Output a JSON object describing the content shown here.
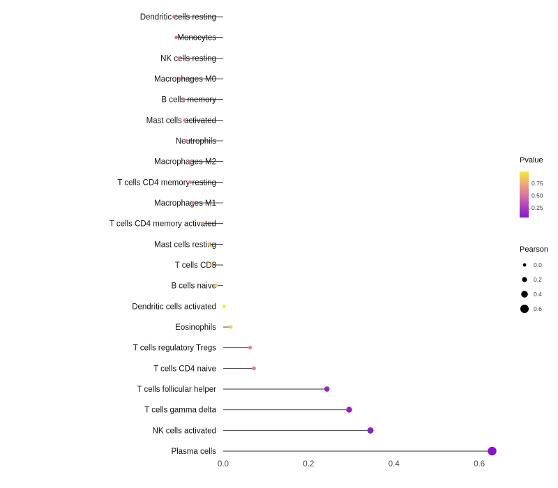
{
  "chart_data": {
    "type": "lollipop",
    "orientation": "horizontal",
    "title": "",
    "xlabel": "",
    "ylabel": "",
    "grid": false,
    "background": "#ffffff",
    "categories": [
      "Dendritic cells resting",
      "Monocytes",
      "NK cells resting",
      "Macrophages M0",
      "B cells memory",
      "Mast cells activated",
      "Neutrophils",
      "Macrophages M2",
      "T cells CD4 memory resting",
      "Macrophages M1",
      "T cells CD4 memory activated",
      "Mast cells resting",
      "T cells CD8",
      "B cells naive",
      "Dendritic cells activated",
      "Eosinophils",
      "T cells regulatory Tregs",
      "T cells CD4 naive",
      "T cells follicular helper",
      "T cells gamma delta",
      "NK cells activated",
      "Plasma cells"
    ],
    "series": [
      {
        "name": "Pearson",
        "values": [
          -0.115,
          -0.11,
          -0.103,
          -0.102,
          -0.092,
          -0.09,
          -0.086,
          -0.078,
          -0.077,
          -0.071,
          -0.048,
          -0.033,
          -0.028,
          -0.016,
          0.002,
          0.018,
          0.063,
          0.072,
          0.243,
          0.295,
          0.345,
          0.63
        ]
      }
    ],
    "pvalues": [
      0.45,
      0.47,
      0.5,
      0.5,
      0.52,
      0.53,
      0.55,
      0.55,
      0.56,
      0.58,
      0.72,
      0.84,
      0.85,
      0.92,
      0.98,
      0.9,
      0.6,
      0.58,
      0.15,
      0.12,
      0.1,
      0.05
    ],
    "xlim": [
      -0.135,
      0.68
    ],
    "x_ticks": [
      0.0,
      0.2,
      0.4,
      0.6
    ],
    "x_tick_labels": [
      "0.0",
      "0.2",
      "0.4",
      "0.6"
    ],
    "legend_color": {
      "title": "Pvalue",
      "tick_values": [
        0.75,
        0.5,
        0.25
      ],
      "tick_labels": [
        "0.75",
        "0.50",
        "0.25"
      ],
      "bar_range": [
        0.05,
        0.99
      ]
    },
    "legend_size": {
      "title": "Pearson",
      "tick_values": [
        0.0,
        0.2,
        0.4,
        0.6
      ],
      "tick_labels": [
        "0.0",
        "0.2",
        "0.4",
        "0.6"
      ]
    },
    "colormap": [
      {
        "t": 0.0,
        "c": "#8405d6"
      },
      {
        "t": 0.25,
        "c": "#a93cc6"
      },
      {
        "t": 0.5,
        "c": "#d9729c"
      },
      {
        "t": 0.75,
        "c": "#f4a975"
      },
      {
        "t": 1.0,
        "c": "#f6ef26"
      }
    ],
    "segment_color": "#1a1a1a",
    "label_color": "#111111",
    "tick_color": "#4d4d4d",
    "size_scale": {
      "value_min": 0.0,
      "value_max": 0.63,
      "radius_min": 2.4,
      "radius_max": 6.2
    }
  }
}
